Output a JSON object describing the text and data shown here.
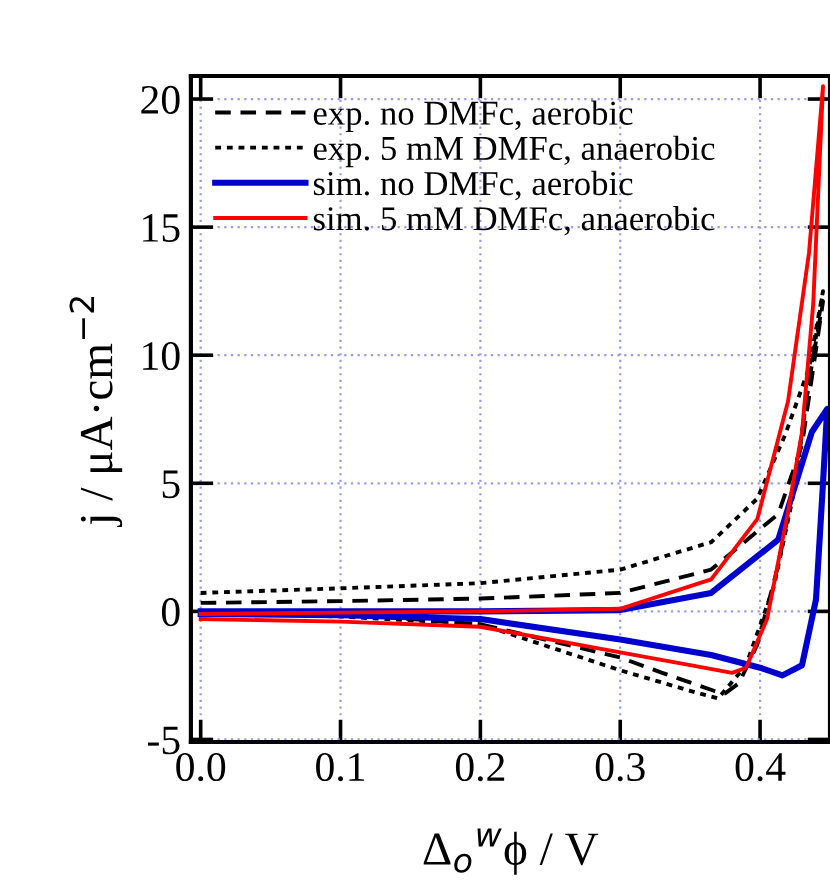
{
  "chart_data": {
    "type": "line",
    "xlabel": "Δ$_{o}$$^{w}$ϕ / V",
    "ylabel": "j / μA·cm$^{−2}$",
    "xlim": [
      -0.007,
      0.45
    ],
    "ylim": [
      -5.1,
      20.9
    ],
    "xticks": [
      {
        "value": 0,
        "label": "0.0"
      },
      0.1,
      0.2,
      0.3,
      0.4
    ],
    "yticks": [
      -5,
      0,
      5,
      10,
      15,
      20
    ],
    "grid": true,
    "legend": "top left",
    "series": [
      {
        "name": "exp. no DMFc, aerobic",
        "color": "#000000",
        "line_style": "dashed",
        "x": [
          0,
          0.1,
          0.2,
          0.3,
          0.365,
          0.413,
          0.43,
          0.445,
          0.435,
          0.427,
          0.413,
          0.398,
          0.385,
          0.375,
          0.367,
          0.33,
          0.3,
          0.2,
          0.1,
          0
        ],
        "values": [
          0.33,
          0.4,
          0.5,
          0.72,
          1.63,
          3.8,
          6.5,
          12.1,
          9.0,
          5.7,
          1.8,
          -1.3,
          -2.8,
          -3.2,
          -3.1,
          -2.4,
          -1.8,
          -0.5,
          -0.1,
          0
        ]
      },
      {
        "name": "exp. 5 mM DMFc, anaerobic",
        "color": "#000000",
        "line_style": "dotted",
        "x": [
          0,
          0.1,
          0.2,
          0.3,
          0.365,
          0.398,
          0.418,
          0.435,
          0.445,
          0.435,
          0.424,
          0.41,
          0.39,
          0.37,
          0.35,
          0.3,
          0.2,
          0.1,
          0
        ],
        "values": [
          0.72,
          0.9,
          1.1,
          1.63,
          2.7,
          4.4,
          6.9,
          9.5,
          12.5,
          9.0,
          4.6,
          1.0,
          -2.1,
          -3.4,
          -3.1,
          -2.3,
          -0.5,
          -0.2,
          -0.05
        ]
      },
      {
        "name": "sim. no DMFc, aerobic",
        "color": "#0000cc",
        "line_style": "solid",
        "x": [
          0,
          0.1,
          0.2,
          0.3,
          0.365,
          0.413,
          0.437,
          0.448,
          0.445,
          0.44,
          0.43,
          0.416,
          0.4,
          0.365,
          0.3,
          0.2,
          0.1,
          0
        ],
        "values": [
          0,
          0,
          0,
          0.05,
          0.72,
          2.8,
          7.0,
          7.9,
          5.0,
          0.47,
          -2.1,
          -2.5,
          -2.2,
          -1.7,
          -1.1,
          -0.3,
          -0.15,
          -0.1
        ]
      },
      {
        "name": "sim. 5 mM DMFc, anaerobic",
        "color": "#ff0000",
        "line_style": "solid",
        "x": [
          0,
          0.1,
          0.2,
          0.3,
          0.365,
          0.398,
          0.42,
          0.435,
          0.445,
          0.438,
          0.43,
          0.42,
          0.405,
          0.39,
          0.38,
          0.35,
          0.3,
          0.2,
          0.1,
          0
        ],
        "values": [
          -0.1,
          -0.05,
          0,
          0.1,
          1.25,
          3.6,
          8.2,
          14.0,
          20.5,
          12.0,
          7.0,
          3.9,
          -0.3,
          -2.2,
          -2.4,
          -2.1,
          -1.6,
          -0.6,
          -0.4,
          -0.3
        ]
      }
    ]
  }
}
